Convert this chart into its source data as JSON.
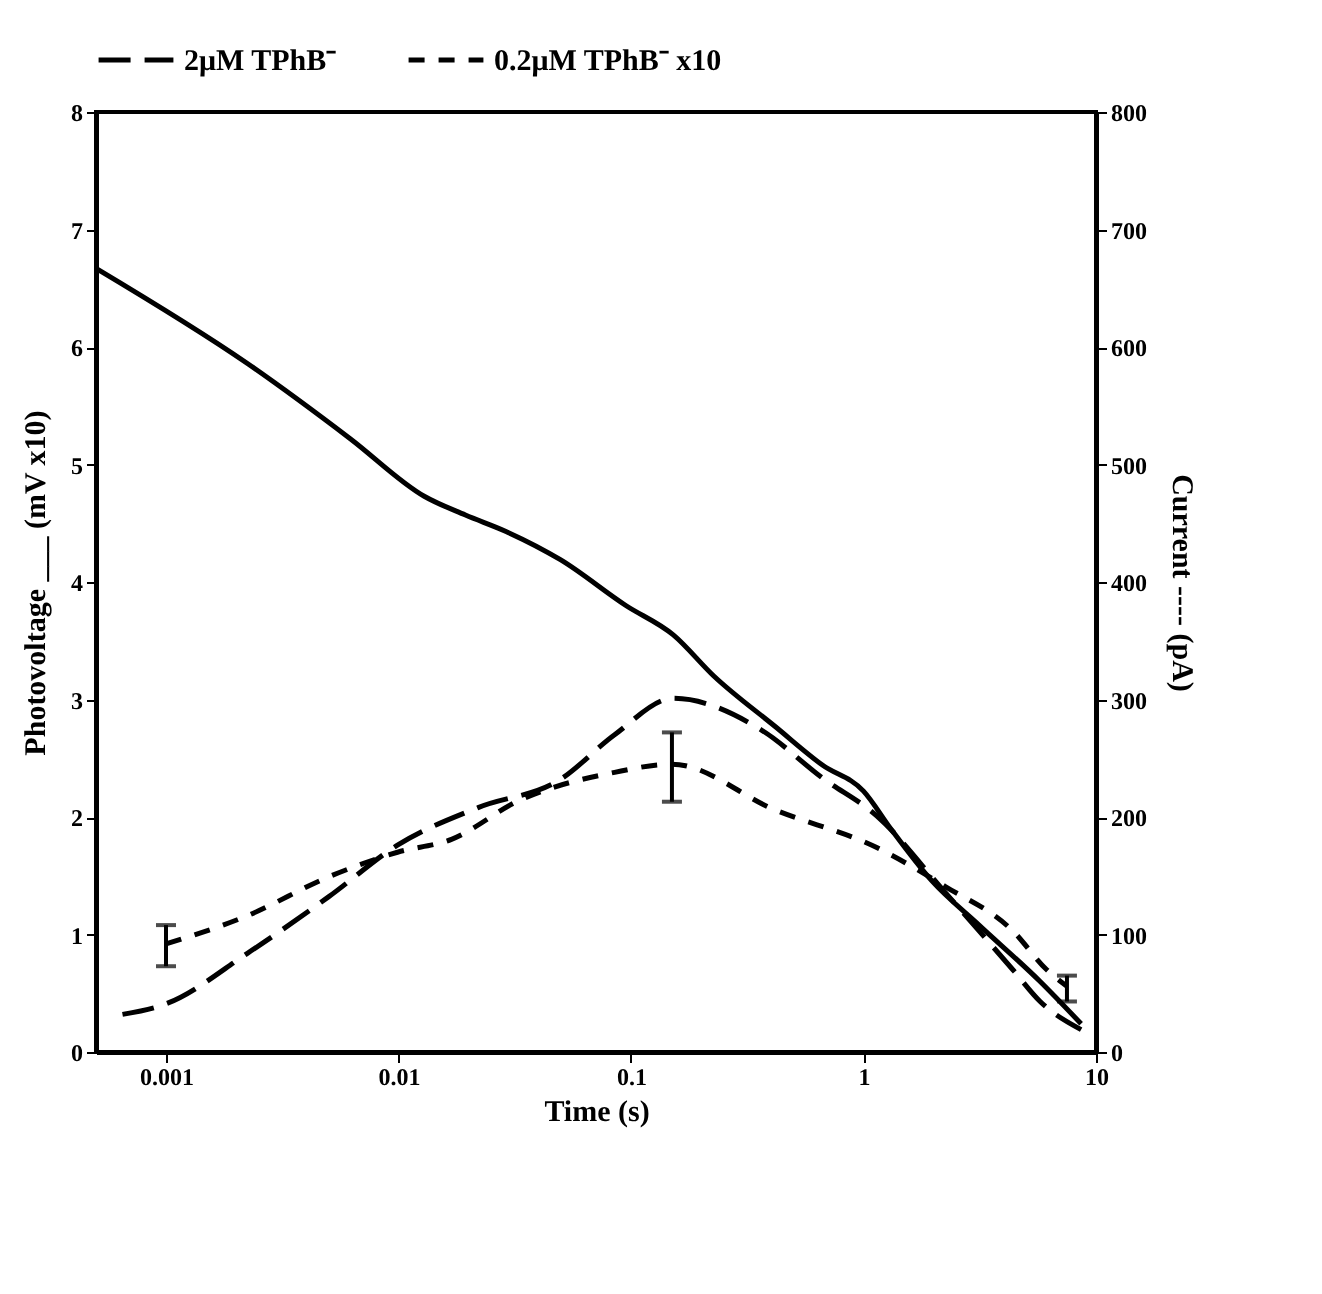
{
  "chart_data": {
    "type": "line",
    "xlabel": "Time (s)",
    "ylabel": "Photovoltage ___ (mV x10)",
    "y2label": "Current ---- (pA)",
    "log": "x",
    "xlim": [
      0.0005,
      10
    ],
    "xticks": [
      0.001,
      0.01,
      0.1,
      1,
      10
    ],
    "ylim": [
      0,
      8
    ],
    "yticks": [
      0,
      1,
      2,
      3,
      4,
      5,
      6,
      7,
      8
    ],
    "y2lim": [
      0,
      800
    ],
    "y2ticks": [
      0,
      100,
      200,
      300,
      400,
      500,
      600,
      700,
      800
    ],
    "grid": false,
    "legend": "top",
    "series": [
      {
        "color": "#000000",
        "line_style": "solid",
        "x": [
          0.0005,
          0.00224,
          0.0062,
          0.0129,
          0.0194,
          0.029,
          0.0497,
          0.095,
          0.152,
          0.227,
          0.417,
          0.668,
          1,
          1.31,
          1.96,
          3.14,
          5.75,
          8.63
        ],
        "values": [
          6.67,
          5.86,
          5.22,
          4.73,
          4.57,
          4.43,
          4.19,
          3.8,
          3.55,
          3.2,
          2.77,
          2.44,
          2.22,
          1.9,
          1.46,
          1.08,
          0.6,
          0.24
        ]
      },
      {
        "name": "2μM TPhB⁻",
        "color": "#000000",
        "line_style": "dashed",
        "axis": "y2",
        "x": [
          0.00065,
          0.001,
          0.00224,
          0.005,
          0.0099,
          0.022,
          0.0497,
          0.085,
          0.152,
          0.364,
          0.668,
          1.14,
          2.24,
          4.39,
          5.75,
          8.63
        ],
        "values": [
          32,
          41,
          84,
          132,
          176,
          208,
          232,
          270,
          301,
          274,
          233,
          201,
          136,
          70,
          43,
          19
        ]
      },
      {
        "name": "0.2μM TPhB⁻ x10",
        "color": "#000000",
        "line_style": "dashed",
        "axis": "y2",
        "x": [
          0.001,
          0.00224,
          0.005,
          0.0099,
          0.0169,
          0.033,
          0.085,
          0.15,
          0.417,
          1.14,
          2.24,
          4.39,
          6.14,
          7.5
        ],
        "values": [
          92,
          116,
          149,
          170,
          181,
          214,
          238,
          245,
          206,
          174,
          141,
          103,
          70,
          56
        ],
        "errors": [
          [
            73,
            108
          ],
          null,
          null,
          null,
          null,
          null,
          null,
          [
            213,
            272
          ],
          null,
          null,
          null,
          null,
          null,
          [
            43,
            65
          ]
        ]
      }
    ]
  }
}
